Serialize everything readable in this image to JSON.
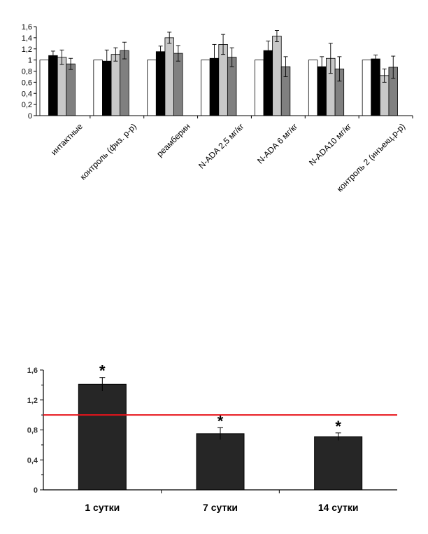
{
  "chart_data": [
    {
      "type": "bar",
      "title": "",
      "xlabel": "",
      "ylabel": "",
      "ylim": [
        0,
        1.6
      ],
      "yticks": [
        "0",
        "0,2",
        "0,4",
        "0,6",
        "0,8",
        "1",
        "1,2",
        "1,4",
        "1,6"
      ],
      "grid": false,
      "legend": "none",
      "categories": [
        "интактные",
        "контроль (физ. р-р)",
        "реамберин",
        "N-ADA 2,5 мг/кг",
        "N-ADA 6 мг/кг",
        "N-ADA10 мг/кг",
        "контроль 2 (инъекц.р-р)"
      ],
      "series": [
        {
          "color": "#ffffff",
          "values": [
            1.0,
            1.0,
            1.0,
            1.0,
            1.0,
            1.0,
            1.0
          ],
          "errors": [
            0,
            0,
            0,
            0,
            0,
            0,
            0
          ]
        },
        {
          "color": "#000000",
          "values": [
            1.08,
            0.98,
            1.15,
            1.03,
            1.17,
            0.88,
            1.02
          ],
          "errors": [
            0.08,
            0.2,
            0.1,
            0.25,
            0.17,
            0.18,
            0.07
          ]
        },
        {
          "color": "#c8c8c8",
          "values": [
            1.05,
            1.1,
            1.4,
            1.28,
            1.43,
            1.03,
            0.72
          ],
          "errors": [
            0.13,
            0.12,
            0.1,
            0.18,
            0.1,
            0.27,
            0.12
          ]
        },
        {
          "color": "#808080",
          "values": [
            0.93,
            1.17,
            1.12,
            1.05,
            0.88,
            0.84,
            0.87
          ],
          "errors": [
            0.1,
            0.15,
            0.14,
            0.17,
            0.18,
            0.22,
            0.2
          ]
        }
      ]
    },
    {
      "type": "bar",
      "title": "",
      "xlabel": "",
      "ylabel": "",
      "ylim": [
        0,
        1.6
      ],
      "yticks": [
        "0",
        "0,4",
        "0,8",
        "1,2",
        "1,6"
      ],
      "grid": false,
      "legend": "none",
      "categories": [
        "1 сутки",
        "7 сутки",
        "14 сутки"
      ],
      "values": [
        1.41,
        0.75,
        0.71
      ],
      "errors": [
        0.09,
        0.08,
        0.05
      ],
      "annotations": [
        "*",
        "*",
        "*"
      ],
      "reference_line": {
        "value": 1.0,
        "color": "#e8141c"
      },
      "bar_color": "#262626"
    }
  ]
}
